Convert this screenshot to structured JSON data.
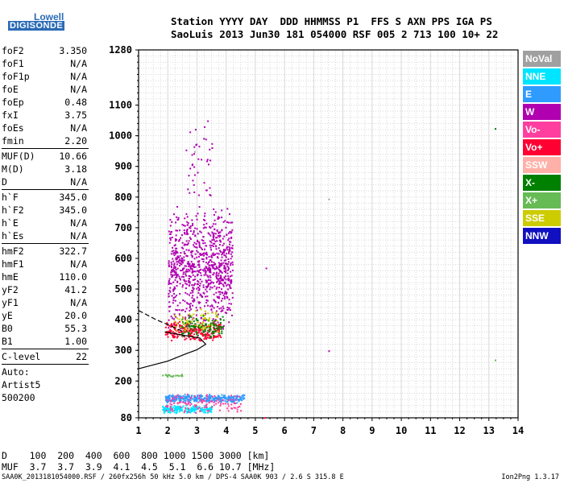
{
  "header": {
    "brand_top": "Lowell",
    "brand_bottom": "DIGISONDE",
    "station_header": "Station YYYY DAY  DDD HHMMSS P1  FFS S AXN PPS IGA PS",
    "station_values": "SaoLuis 2013 Jun30 181 054000 RSF 005 2 713 100 10+ 22"
  },
  "params": [
    {
      "name": "foF2",
      "value": "3.350"
    },
    {
      "name": "foF1",
      "value": "N/A"
    },
    {
      "name": "foF1p",
      "value": "N/A"
    },
    {
      "name": "foE",
      "value": "N/A"
    },
    {
      "name": "foEp",
      "value": "0.48"
    },
    {
      "name": "fxI",
      "value": "3.75"
    },
    {
      "name": "foEs",
      "value": "N/A"
    },
    {
      "name": "fmin",
      "value": "2.20"
    },
    {
      "name": "MUF(D)",
      "value": "10.66"
    },
    {
      "name": "M(D)",
      "value": "3.18"
    },
    {
      "name": "D",
      "value": "N/A"
    },
    {
      "name": "h`F",
      "value": "345.0"
    },
    {
      "name": "h`F2",
      "value": "345.0"
    },
    {
      "name": "h`E",
      "value": "N/A"
    },
    {
      "name": "h`Es",
      "value": "N/A"
    },
    {
      "name": "hmF2",
      "value": "322.7"
    },
    {
      "name": "hmF1",
      "value": "N/A"
    },
    {
      "name": "hmE",
      "value": "110.0"
    },
    {
      "name": "yF2",
      "value": "41.2"
    },
    {
      "name": "yF1",
      "value": "N/A"
    },
    {
      "name": "yE",
      "value": "20.0"
    },
    {
      "name": "B0",
      "value": "55.3"
    },
    {
      "name": "B1",
      "value": "1.00"
    },
    {
      "name": "C-level",
      "value": "22"
    }
  ],
  "auto_lines": [
    "Auto:",
    "Artist5",
    "500200"
  ],
  "legend": [
    {
      "label": "NoVal",
      "color": "#a0a0a0"
    },
    {
      "label": "NNE",
      "color": "#00e5ff"
    },
    {
      "label": "E",
      "color": "#2f9bff"
    },
    {
      "label": "W",
      "color": "#b000b0"
    },
    {
      "label": "Vo-",
      "color": "#ff3fa0"
    },
    {
      "label": "Vo+",
      "color": "#ff0033"
    },
    {
      "label": "SSW",
      "color": "#ffb0a8"
    },
    {
      "label": "X-",
      "color": "#008000"
    },
    {
      "label": "X+",
      "color": "#66bb55"
    },
    {
      "label": "SSE",
      "color": "#cccc00"
    },
    {
      "label": "NNW",
      "color": "#1010c0"
    }
  ],
  "bottom": {
    "d_row": "D    100  200  400  600  800 1000 1500 3000 [km]",
    "muf_row": "MUF  3.7  3.7  3.9  4.1  4.5  5.1  6.6 10.7 [MHz]"
  },
  "footer": {
    "left": "SAA0K_2013181054000.RSF / 260fx256h 50 kHz 5.0 km / DPS-4 SAA0K 903 / 2.6 S 315.8 E",
    "right": "Ion2Png 1.3.17"
  },
  "chart_data": {
    "type": "scatter",
    "title": "",
    "xlabel": "",
    "ylabel": "",
    "xlim": [
      1,
      14
    ],
    "ylim": [
      80,
      1280
    ],
    "x_ticks": [
      1,
      2,
      3,
      4,
      5,
      6,
      7,
      8,
      9,
      10,
      11,
      12,
      13,
      14
    ],
    "y_ticks": [
      80,
      200,
      300,
      400,
      500,
      600,
      700,
      800,
      900,
      1000,
      1100,
      1280
    ],
    "grid": true,
    "clusters": [
      {
        "name": "F2 spread",
        "color": "#b000b0",
        "x_range": [
          2.0,
          4.2
        ],
        "y_range": [
          360,
          780
        ],
        "count": 900
      },
      {
        "name": "F2 lower trace",
        "color": "#ff0033",
        "x_range": [
          1.9,
          3.8
        ],
        "y_range": [
          330,
          400
        ],
        "count": 260
      },
      {
        "name": "X trace",
        "color": "#008000",
        "x_range": [
          2.4,
          3.9
        ],
        "y_range": [
          340,
          420
        ],
        "count": 120
      },
      {
        "name": "SSE scatter",
        "color": "#cccc00",
        "x_range": [
          2.2,
          3.7
        ],
        "y_range": [
          360,
          440
        ],
        "count": 60
      },
      {
        "name": "high echoes",
        "color": "#b000b0",
        "x_range": [
          2.6,
          3.5
        ],
        "y_range": [
          780,
          1060
        ],
        "count": 40
      },
      {
        "name": "E layer",
        "color": "#2f9bff",
        "x_range": [
          1.9,
          4.6
        ],
        "y_range": [
          130,
          160
        ],
        "count": 320
      },
      {
        "name": "E layer low",
        "color": "#00e5ff",
        "x_range": [
          1.8,
          3.5
        ],
        "y_range": [
          95,
          125
        ],
        "count": 180
      },
      {
        "name": "E mixed",
        "color": "#ff3fa0",
        "x_range": [
          1.9,
          4.5
        ],
        "y_range": [
          95,
          160
        ],
        "count": 120
      },
      {
        "name": "Es",
        "color": "#66bb55",
        "x_range": [
          1.8,
          2.5
        ],
        "y_range": [
          215,
          225
        ],
        "count": 20
      }
    ],
    "points": [
      {
        "x": 5.35,
        "y": 570,
        "color": "#b000b0"
      },
      {
        "x": 7.5,
        "y": 300,
        "color": "#b000b0"
      },
      {
        "x": 7.5,
        "y": 795,
        "color": "#a0a0a0"
      },
      {
        "x": 13.2,
        "y": 1025,
        "color": "#008000"
      },
      {
        "x": 13.2,
        "y": 270,
        "color": "#66bb55"
      },
      {
        "x": 3.35,
        "y": 1050,
        "color": "#b000b0"
      },
      {
        "x": 2.9,
        "y": 950,
        "color": "#a0a0a0"
      },
      {
        "x": 5.3,
        "y": 82,
        "color": "#ff0033"
      }
    ],
    "profile_solid": [
      [
        1,
        240
      ],
      [
        2.0,
        265
      ],
      [
        2.6,
        288
      ],
      [
        3.0,
        302
      ],
      [
        3.3,
        320
      ],
      [
        3.1,
        340
      ],
      [
        2.5,
        350
      ],
      [
        1.9,
        360
      ]
    ],
    "profile_dashed": [
      [
        1,
        430
      ],
      [
        1.6,
        400
      ],
      [
        2.1,
        380
      ],
      [
        2.5,
        362
      ]
    ]
  }
}
